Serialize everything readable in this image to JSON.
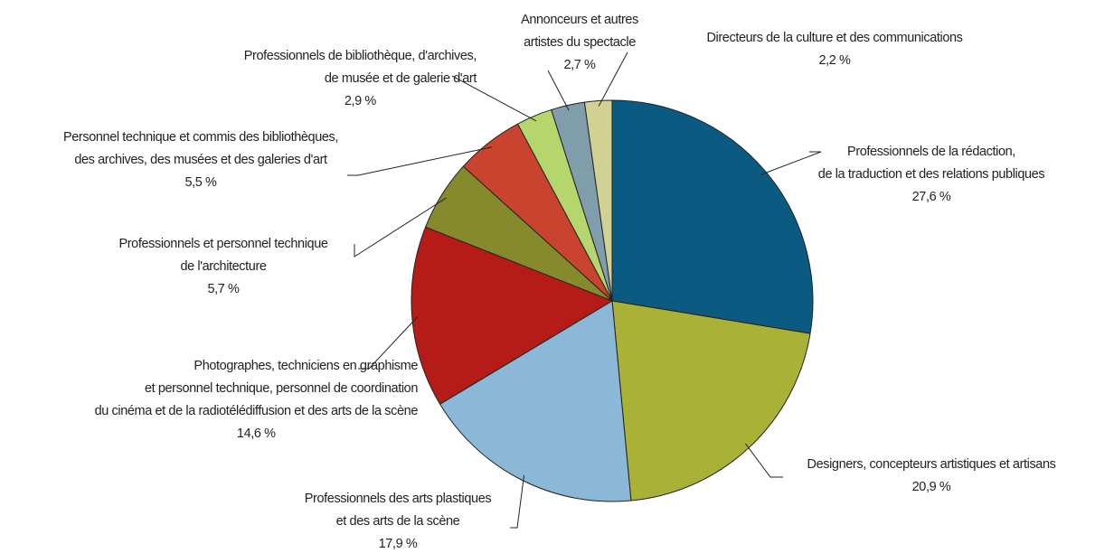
{
  "chart_data": {
    "type": "pie",
    "categories": [
      [
        "Professionnels de la rédaction,",
        "de la traduction et des relations publiques"
      ],
      [
        "Designers, concepteurs artistiques et artisans"
      ],
      [
        "Professionnels des arts plastiques",
        "et des arts de la scène"
      ],
      [
        "Photographes, techniciens en graphisme",
        "et personnel technique, personnel de coordination",
        "du cinéma et de la radiotélédiffusion et des arts de la scène"
      ],
      [
        "Professionnels et personnel technique",
        "de l'architecture"
      ],
      [
        "Personnel technique et commis des bibliothèques,",
        "des archives, des musées et des galeries d'art"
      ],
      [
        "Professionnels de bibliothèque, d'archives,",
        "de musée et de galerie d'art"
      ],
      [
        "Annonceurs et autres",
        "artistes du spectacle"
      ],
      [
        "Directeurs de la culture et des communications"
      ]
    ],
    "values": [
      27.6,
      20.9,
      17.9,
      14.6,
      5.7,
      5.5,
      2.9,
      2.7,
      2.2
    ],
    "value_labels": [
      "27,6 %",
      "20,9 %",
      "17,9 %",
      "14,6 %",
      "5,7 %",
      "5,5 %",
      "2,9 %",
      "2,7 %",
      "2,2 %"
    ],
    "colors": [
      "#0b5a82",
      "#a9b236",
      "#8ab8d6",
      "#b51c17",
      "#878a2c",
      "#c9432e",
      "#b5d66c",
      "#7f9daa",
      "#d0d193"
    ]
  }
}
